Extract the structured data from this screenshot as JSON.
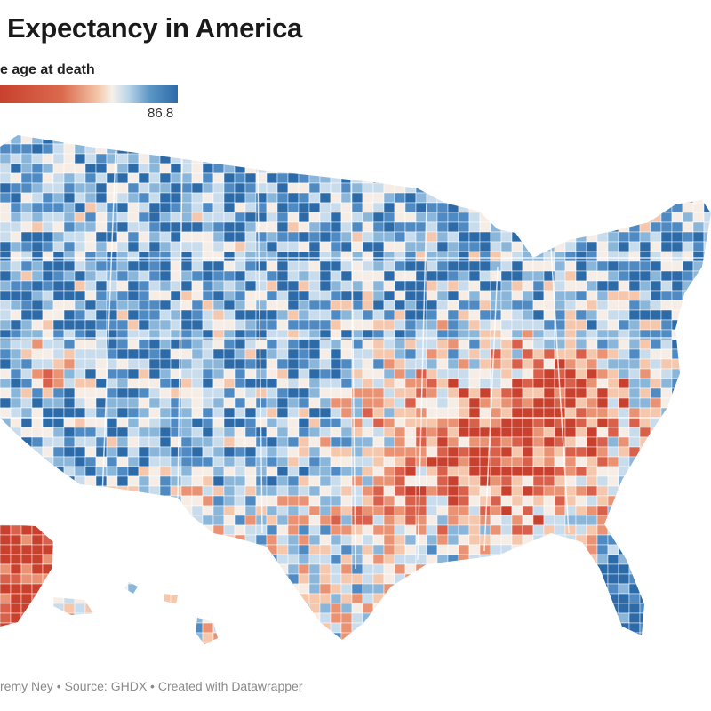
{
  "title": "Expectancy in America",
  "legend": {
    "title": "e age at death",
    "max_label": "86.8",
    "colors": {
      "low": "#c8412e",
      "mid": "#f5f1ea",
      "high": "#2d6aa8"
    }
  },
  "map": {
    "type": "choropleth",
    "region": "United States counties",
    "high_regions": [
      "Northern Plains",
      "Mountain West",
      "Upper Midwest",
      "Northeast",
      "Florida south"
    ],
    "low_regions": [
      "Southeast",
      "Appalachia",
      "Mississippi Delta",
      "Alaska"
    ]
  },
  "footer": "remy Ney • Source: GHDX • Created with Datawrapper"
}
